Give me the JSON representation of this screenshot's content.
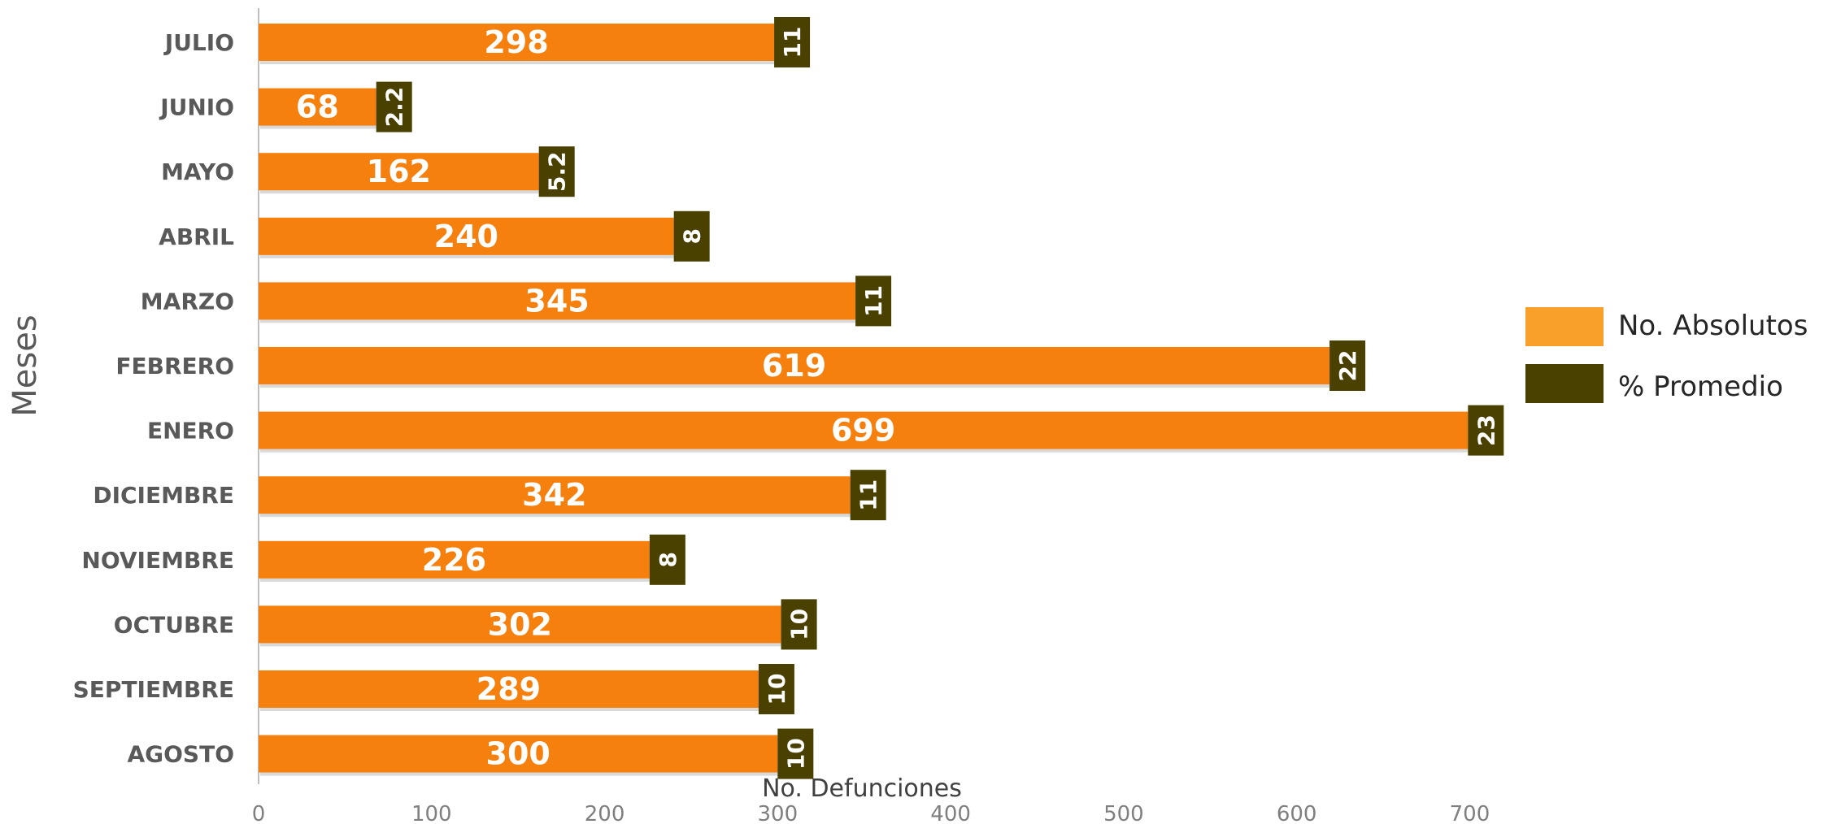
{
  "chart_data": {
    "type": "bar",
    "orientation": "horizontal",
    "stacked": true,
    "ylabel": "Meses",
    "xlabel": "No. Defunciones",
    "xlim": [
      0,
      720
    ],
    "xticks": [
      0,
      100,
      200,
      300,
      400,
      500,
      600,
      700
    ],
    "categories": [
      "JULIO",
      "JUNIO",
      "MAYO",
      "ABRIL",
      "MARZO",
      "FEBRERO",
      "ENERO",
      "DICIEMBRE",
      "NOVIEMBRE",
      "OCTUBRE",
      "SEPTIEMBRE",
      "AGOSTO"
    ],
    "series": [
      {
        "name": "No. Absolutos",
        "color": "#f5800e",
        "legend_color": "#f9a02a",
        "values": [
          298,
          68,
          162,
          240,
          345,
          619,
          699,
          342,
          226,
          302,
          289,
          300
        ],
        "labels": [
          "298",
          "68",
          "162",
          "240",
          "345",
          "619",
          "699",
          "342",
          "226",
          "302",
          "289",
          "300"
        ]
      },
      {
        "name": "% Promedio",
        "color": "#4a4100",
        "values": [
          11,
          2.2,
          5.2,
          8,
          11,
          22,
          23,
          11,
          8,
          10,
          10,
          10
        ],
        "labels": [
          "11",
          "2.2",
          "5.2",
          "8",
          "11",
          "22",
          "23",
          "11",
          "8",
          "10",
          "10",
          "10"
        ]
      }
    ],
    "gridlines": false,
    "legend_position": "right"
  }
}
